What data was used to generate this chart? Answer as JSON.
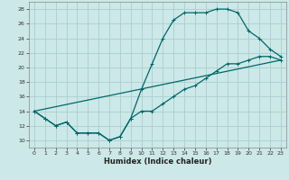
{
  "title": "",
  "xlabel": "Humidex (Indice chaleur)",
  "xlim": [
    -0.5,
    23.5
  ],
  "ylim": [
    9,
    29
  ],
  "yticks": [
    10,
    12,
    14,
    16,
    18,
    20,
    22,
    24,
    26,
    28
  ],
  "xticks": [
    0,
    1,
    2,
    3,
    4,
    5,
    6,
    7,
    8,
    9,
    10,
    11,
    12,
    13,
    14,
    15,
    16,
    17,
    18,
    19,
    20,
    21,
    22,
    23
  ],
  "bg_color": "#cce8e8",
  "grid_color": "#aacece",
  "line_color": "#006868",
  "line1_x": [
    0,
    1,
    2,
    3,
    4,
    5,
    6,
    7,
    8,
    9,
    10,
    11,
    12,
    13,
    14,
    15,
    16,
    17,
    18,
    19,
    20,
    21,
    22,
    23
  ],
  "line1_y": [
    14,
    13,
    12,
    12.5,
    11,
    11,
    11,
    10,
    10.5,
    13,
    17,
    20.5,
    24,
    26.5,
    27.5,
    27.5,
    27.5,
    28,
    28,
    27.5,
    25,
    24,
    22.5,
    21.5
  ],
  "line2_x": [
    0,
    1,
    2,
    3,
    4,
    5,
    6,
    7,
    8,
    9,
    10,
    11,
    12,
    13,
    14,
    15,
    16,
    17,
    18,
    19,
    20,
    21,
    22,
    23
  ],
  "line2_y": [
    14,
    13,
    12,
    12.5,
    11,
    11,
    11,
    10,
    10.5,
    13,
    14,
    14,
    15,
    16,
    17,
    17.5,
    18.5,
    19.5,
    20.5,
    20.5,
    21,
    21.5,
    21.5,
    21.0
  ],
  "line3_x": [
    0,
    23
  ],
  "line3_y": [
    14,
    21
  ]
}
